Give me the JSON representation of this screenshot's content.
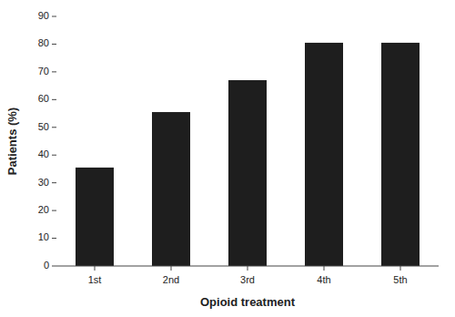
{
  "chart_data": {
    "type": "bar",
    "categories": [
      "1st",
      "2nd",
      "3rd",
      "4th",
      "5th"
    ],
    "values": [
      35.5,
      55.5,
      67.0,
      80.5,
      80.5
    ],
    "color": "#1e1e1e",
    "xlabel": "Opioid treatment",
    "ylabel": "Patients (%)",
    "ylim": [
      0,
      90
    ],
    "yticks": [
      0,
      10,
      20,
      30,
      40,
      50,
      60,
      70,
      80,
      90
    ],
    "grid": false
  }
}
